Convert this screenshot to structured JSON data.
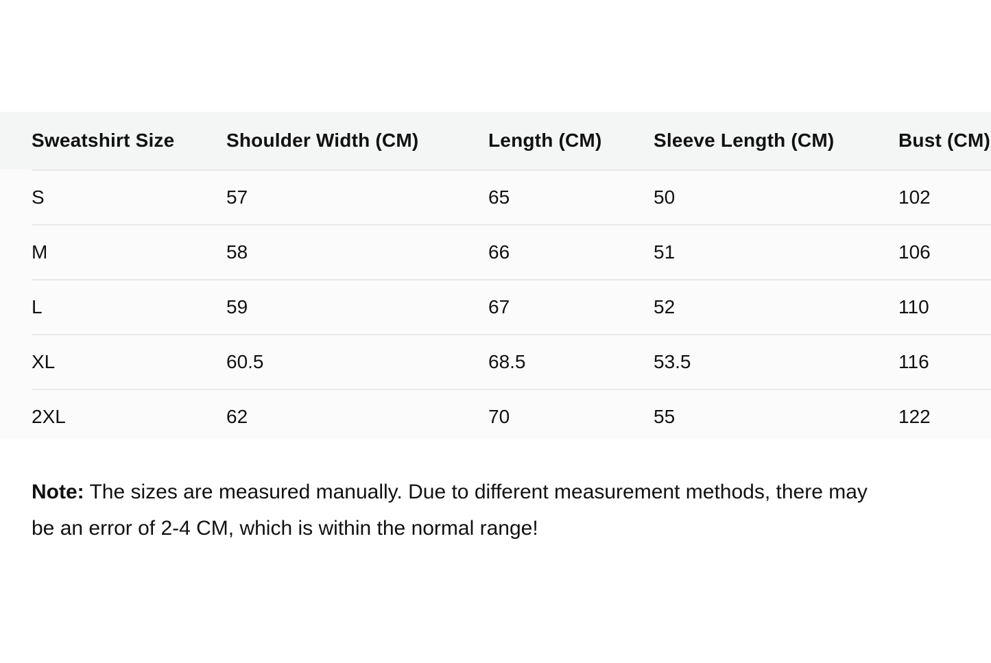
{
  "table": {
    "columns": [
      "Sweatshirt Size",
      "Shoulder Width (CM)",
      "Length (CM)",
      "Sleeve Length (CM)",
      "Bust (CM)"
    ],
    "rows": [
      {
        "cells": [
          "S",
          "57",
          "65",
          "50",
          "102"
        ]
      },
      {
        "cells": [
          "M",
          "58",
          "66",
          "51",
          "106"
        ]
      },
      {
        "cells": [
          "L",
          "59",
          "67",
          "52",
          "110"
        ]
      },
      {
        "cells": [
          "XL",
          "60.5",
          "68.5",
          "53.5",
          "116"
        ]
      },
      {
        "cells": [
          "2XL",
          "62",
          "70",
          "55",
          "122"
        ]
      }
    ]
  },
  "note": {
    "label": "Note:",
    "lines": [
      "The sizes are measured manually. Due to different measurement methods, there may",
      "be an error of 2-4 CM, which is within the normal range!"
    ]
  },
  "colors": {
    "band_background": "#fbfbfb",
    "header_background": "#f4f5f5",
    "divider": "#e9e9e9",
    "text": "#111111"
  }
}
